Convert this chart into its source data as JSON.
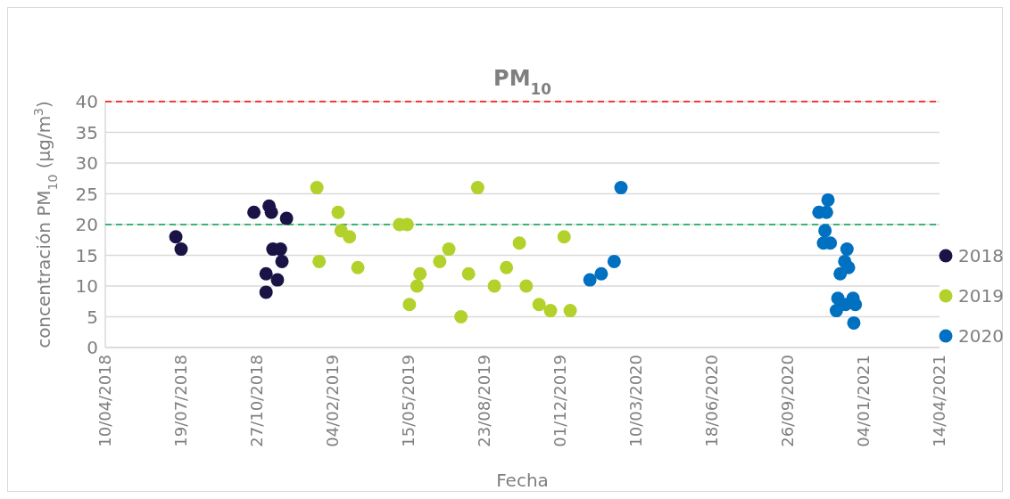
{
  "chart_data": {
    "type": "scatter",
    "title": "PM$_{10}$",
    "xlabel": "Fecha",
    "ylabel": "concentración PM$_{10}$ (µg/m$^{3}$)",
    "xlim": [
      "2018-04-10",
      "2021-04-14"
    ],
    "xticks": [
      {
        "value": "2018-04-10",
        "label": "10/04/2018"
      },
      {
        "value": "2018-07-19",
        "label": "19/07/2018"
      },
      {
        "value": "2018-10-27",
        "label": "27/10/2018"
      },
      {
        "value": "2019-02-04",
        "label": "04/02/2019"
      },
      {
        "value": "2019-05-15",
        "label": "15/05/2019"
      },
      {
        "value": "2019-08-23",
        "label": "23/08/2019"
      },
      {
        "value": "2019-12-01",
        "label": "01/12/2019"
      },
      {
        "value": "2020-03-10",
        "label": "10/03/2020"
      },
      {
        "value": "2020-06-18",
        "label": "18/06/2020"
      },
      {
        "value": "2020-09-26",
        "label": "26/09/2020"
      },
      {
        "value": "2021-01-04",
        "label": "04/01/2021"
      },
      {
        "value": "2021-04-14",
        "label": "14/04/2021"
      }
    ],
    "ylim": [
      0,
      40
    ],
    "yticks": [
      0,
      5,
      10,
      15,
      20,
      25,
      30,
      35,
      40
    ],
    "grid": "y",
    "legend": "right",
    "marker": "circle",
    "ref_lines": [
      {
        "axis": "y",
        "value": 40,
        "color": "#ff0000",
        "line_style": "dashed"
      },
      {
        "axis": "y",
        "value": 20,
        "color": "#00a651",
        "line_style": "dashed"
      }
    ],
    "series": [
      {
        "name": "2018",
        "color": "#1a1446",
        "x": [
          "2018-07-12",
          "2018-07-19",
          "2018-10-23",
          "2018-11-12",
          "2018-11-15",
          "2018-11-08",
          "2018-11-08",
          "2018-11-17",
          "2018-11-27",
          "2018-11-29",
          "2018-11-23",
          "2018-12-05"
        ],
        "values": [
          18,
          16,
          22,
          23,
          22,
          12,
          9,
          16,
          16,
          14,
          11,
          21
        ]
      },
      {
        "name": "2019",
        "color": "#b2d12a",
        "x": [
          "2019-01-14",
          "2019-01-17",
          "2019-02-11",
          "2019-02-15",
          "2019-02-26",
          "2019-03-09",
          "2019-05-03",
          "2019-05-13",
          "2019-05-16",
          "2019-05-26",
          "2019-05-30",
          "2019-06-25",
          "2019-07-07",
          "2019-07-23",
          "2019-08-02",
          "2019-08-14",
          "2019-09-05",
          "2019-09-21",
          "2019-10-08",
          "2019-10-17",
          "2019-11-03",
          "2019-11-18",
          "2019-12-06",
          "2019-12-14"
        ],
        "values": [
          26,
          14,
          22,
          19,
          18,
          13,
          20,
          20,
          7,
          10,
          12,
          14,
          16,
          5,
          12,
          26,
          10,
          13,
          17,
          10,
          7,
          6,
          18,
          6
        ]
      },
      {
        "name": "2020",
        "color": "#0070c0",
        "x": [
          "2020-01-09",
          "2020-01-24",
          "2020-02-10",
          "2020-02-19",
          "2020-11-18",
          "2020-11-06",
          "2020-11-16",
          "2020-11-14",
          "2020-11-12",
          "2020-11-21",
          "2020-12-13",
          "2020-12-10",
          "2020-12-15",
          "2020-12-04",
          "2020-12-01",
          "2020-12-21",
          "2020-11-29",
          "2020-12-11",
          "2020-12-24",
          "2020-12-22"
        ],
        "values": [
          11,
          12,
          14,
          26,
          24,
          22,
          22,
          19,
          17,
          17,
          16,
          14,
          13,
          12,
          8,
          8,
          6,
          7,
          7,
          4
        ]
      }
    ]
  }
}
